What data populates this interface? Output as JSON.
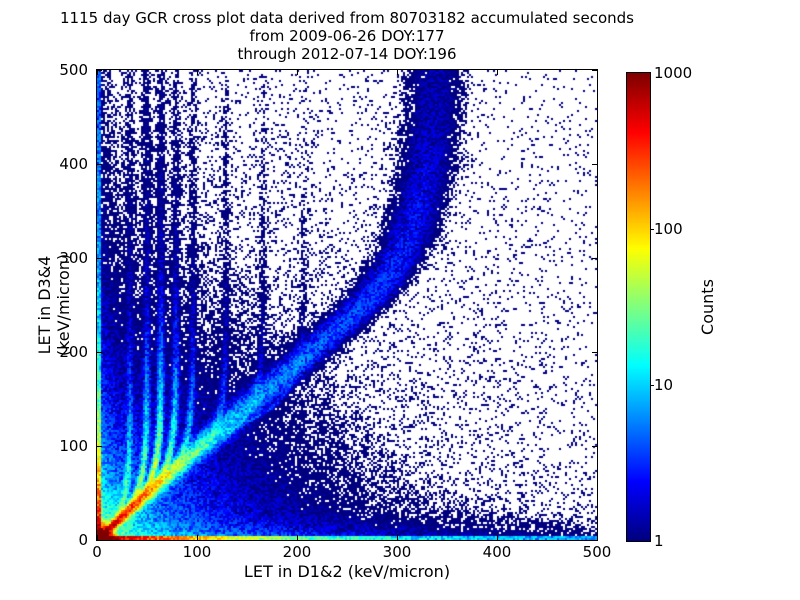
{
  "chart_data": {
    "type": "heatmap",
    "subtype": "2d-histogram-cross-plot",
    "title_lines": [
      "1115 day GCR cross plot data derived from 80703182 accumulated seconds",
      "from 2009-06-26 DOY:177",
      "through 2012-07-14 DOY:196"
    ],
    "xlabel": "LET in D1&2 (keV/micron)",
    "ylabel": "LET in D3&4 (keV/micron)",
    "xlim": [
      0,
      500
    ],
    "ylim": [
      0,
      500
    ],
    "x_ticks": [
      0,
      100,
      200,
      300,
      400,
      500
    ],
    "y_ticks": [
      0,
      100,
      200,
      300,
      400,
      500
    ],
    "grid": false,
    "background": "#ffffff",
    "point_color_min": "#000080",
    "point_color_max": "#800000",
    "colorbar": {
      "label": "Counts",
      "scale": "log",
      "min": 1,
      "max": 1000,
      "ticks": [
        1,
        10,
        100,
        1000
      ],
      "tick_labels": [
        "1",
        "10",
        "100",
        "1000"
      ],
      "colormap": "jet",
      "position": "right"
    },
    "density_model": {
      "seed": 20120714,
      "cell_units": 2,
      "noise": {
        "base": 0.45,
        "span": 1.1,
        "sparse_threshold": 0.55,
        "sparse_gain": 0.6
      },
      "origin_blob": {
        "amp": 5000,
        "sigma": 9
      },
      "origin_halo": [
        {
          "amp": 30,
          "tau": 22
        },
        {
          "amp": 6,
          "tau": 60
        }
      ],
      "bright_line": {
        "amp": 1400,
        "tau": 21,
        "slope": 1.02,
        "width0": 2,
        "width_slope": 0.05
      },
      "band": {
        "slope": 1.07,
        "y_knee": 240,
        "x_knee_rise": 85,
        "knee_tau": 80,
        "amp": 13,
        "tau": 160,
        "base": 0.55,
        "width0": 9,
        "width_slope": 0.04
      },
      "hooks": [
        {
          "xv": 33,
          "yb": 16,
          "amp": 45,
          "tail": 0.9
        },
        {
          "xv": 50,
          "yb": 26,
          "amp": 80,
          "tail": 1.3
        },
        {
          "xv": 64,
          "yb": 36,
          "amp": 130,
          "tail": 1.5
        },
        {
          "xv": 79,
          "yb": 46,
          "amp": 70,
          "tail": 1.1
        },
        {
          "xv": 96,
          "yb": 57,
          "amp": 30,
          "tail": 0.8
        },
        {
          "xv": 129,
          "yb": 74,
          "amp": 14,
          "tail": 0.7
        },
        {
          "xv": 166,
          "yb": 92,
          "amp": 7,
          "tail": 0.55
        },
        {
          "xv": 207,
          "yb": 110,
          "amp": 4,
          "tail": 0.45
        }
      ],
      "hook_shape": {
        "bend_tau": 28,
        "decay_tau": 45,
        "tail_tau": 500,
        "width0": 2.2,
        "width_slope": 0.004
      },
      "left_edge": {
        "edge": 3.5,
        "amp": 600,
        "tau": 38,
        "amp2": 15,
        "tau2": 250,
        "base": 1.5,
        "halo": [
          {
            "amp": 25,
            "xtau": 7,
            "ytau": 60
          },
          {
            "amp": 2.5,
            "xtau": 12,
            "ytau": 250
          }
        ]
      },
      "bottom_edge": {
        "edge": 3.5,
        "amp": 900,
        "tau": 45,
        "amp2": 28,
        "tau2": 280,
        "base": 1.2,
        "halo": [
          {
            "amp": 20,
            "ytau": 7,
            "xtau": 90
          },
          {
            "amp": 2.2,
            "ytau": 14,
            "xtau": 400
          }
        ]
      },
      "background": {
        "r_terms": [
          {
            "amp": 1.8,
            "tau": 85
          },
          {
            "amp": 0.5,
            "tau": 250
          }
        ],
        "uniform": 0.045,
        "xy_terms": [
          {
            "amp": 0.7,
            "xtau": 130,
            "ytau": 420
          },
          {
            "amp": 0.9,
            "xtau": 300,
            "ytau": 60
          }
        ]
      }
    }
  }
}
